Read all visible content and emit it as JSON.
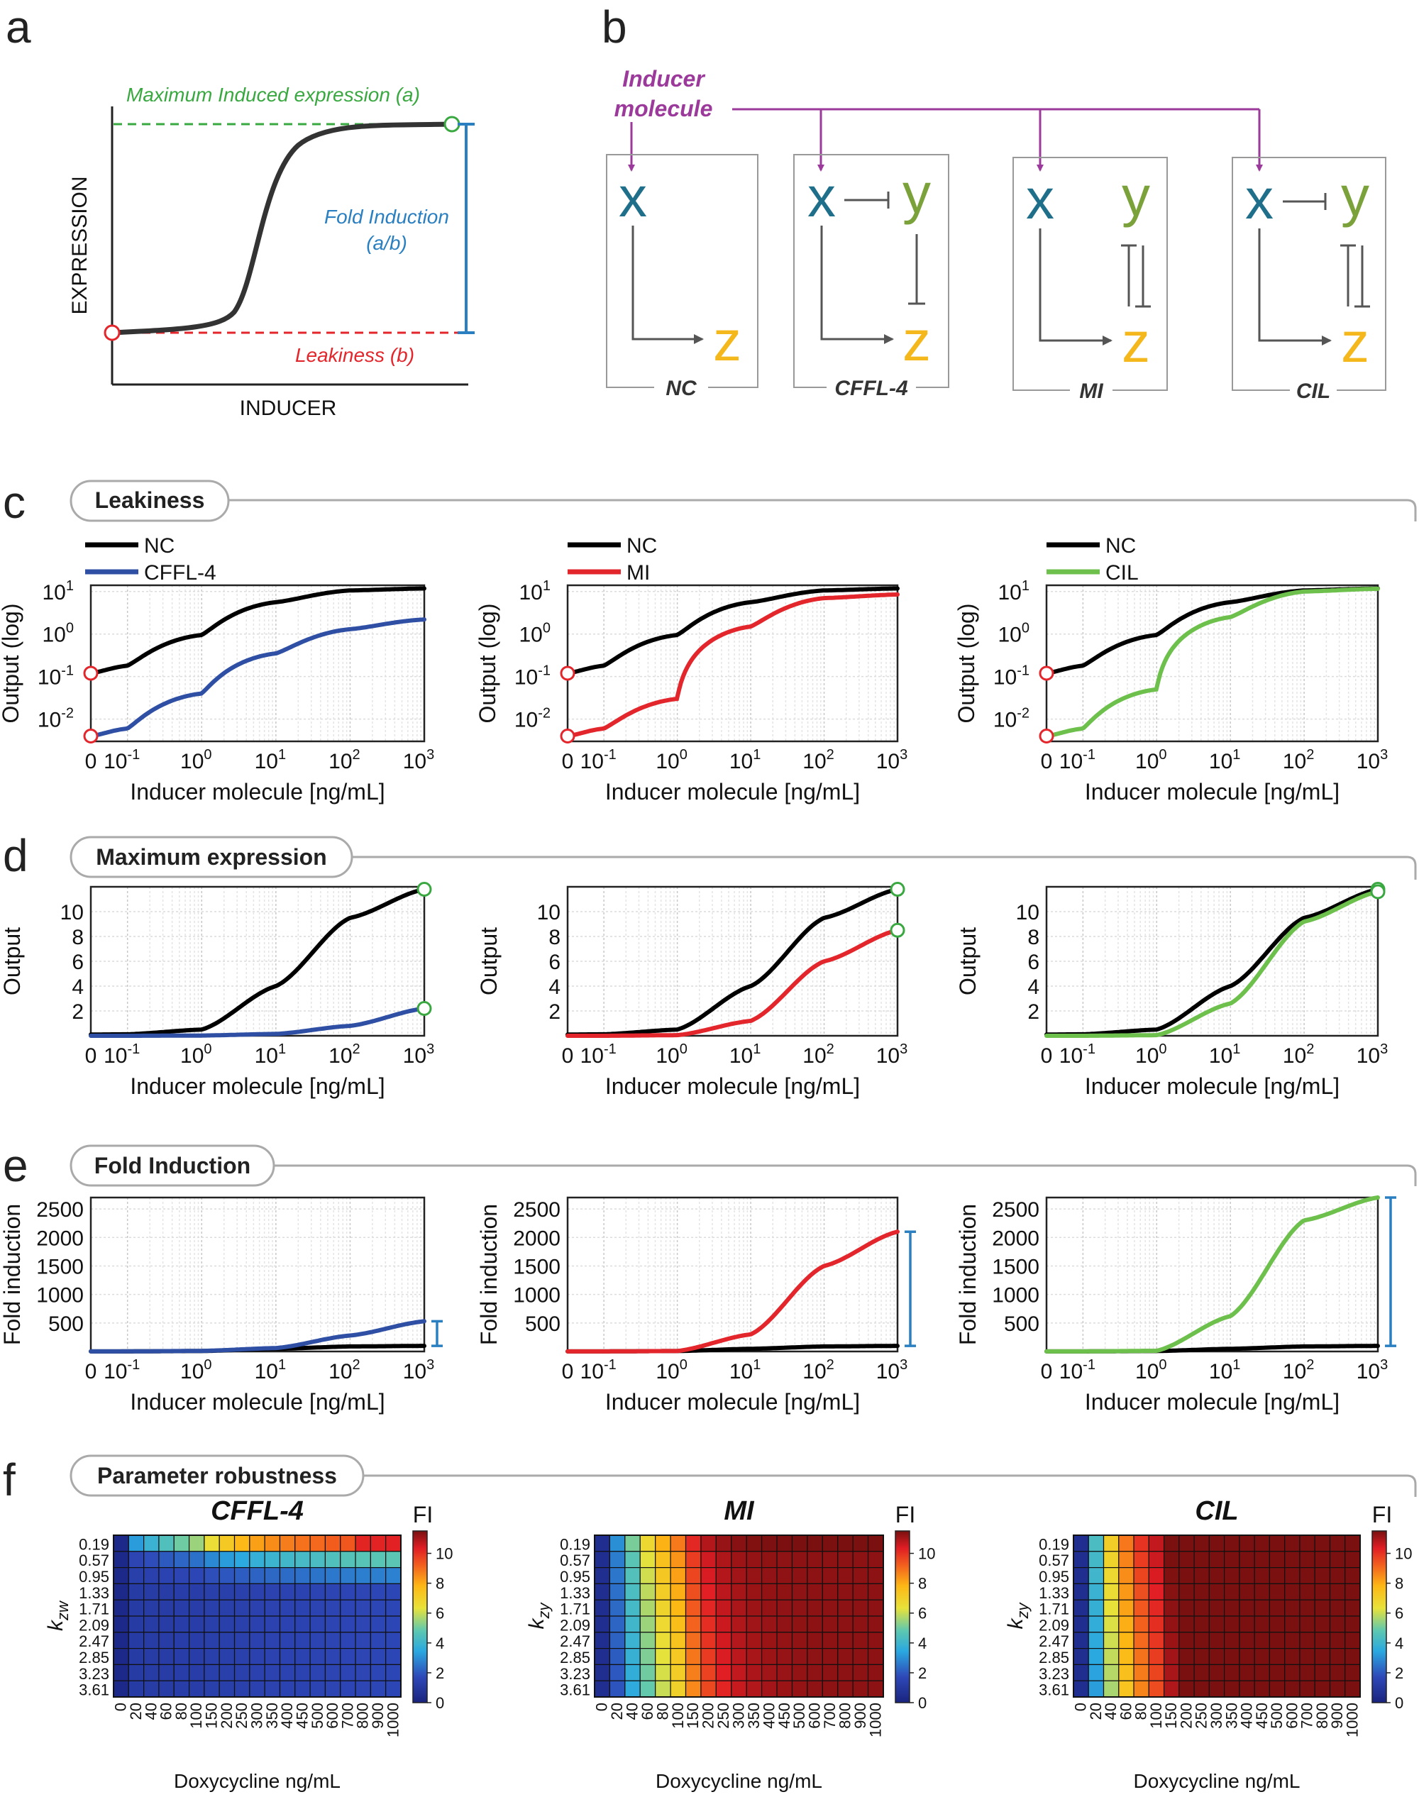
{
  "panel_letters": {
    "a": "a",
    "b": "b",
    "c": "c",
    "d": "d",
    "e": "e",
    "f": "f"
  },
  "section_titles": {
    "c": "Leakiness",
    "d": "Maximum expression",
    "e": "Fold Induction",
    "f": "Parameter robustness"
  },
  "colors": {
    "nc": "#000000",
    "cffl4": "#2e4fa3",
    "mi": "#e3262c",
    "cil": "#6dc04b",
    "leak": "#e3262c",
    "max": "#3aa841",
    "fold": "#2a7fc1",
    "inducer": "#9b3a9b",
    "x": "#1f6f8b",
    "y": "#7ba23a",
    "z": "#f4b81d"
  },
  "panel_a": {
    "max_label": "Maximum Induced expression (a)",
    "fold_label_1": "Fold Induction",
    "fold_label_2": "(a/b)",
    "leak_label": "Leakiness (b)",
    "ylabel": "EXPRESSION",
    "xlabel": "INDUCER"
  },
  "panel_b": {
    "inducer_1": "Inducer",
    "inducer_2": "molecule",
    "nodes": {
      "x": "x",
      "y": "y",
      "z": "z"
    },
    "circuits": [
      "NC",
      "CFFL-4",
      "MI",
      "CIL"
    ]
  },
  "xticks": [
    "0",
    "10",
    "10",
    "10",
    "10",
    "10"
  ],
  "xtick_exps": [
    "",
    "-1",
    "0",
    "1",
    "2",
    "3"
  ],
  "xlabel": "Inducer molecule [ng/mL]",
  "nc_label": "NC",
  "chart_data": [
    {
      "type": "line",
      "id": "c1",
      "section": "Leakiness",
      "ylabel": "Output (log)",
      "yscale": "log",
      "ylim": [
        0.003,
        14
      ],
      "yticks": [
        "10",
        "10",
        "10",
        "10"
      ],
      "ytick_exps": [
        "1",
        "0",
        "-1",
        "-2"
      ],
      "ytick_values": [
        10,
        1,
        0.1,
        0.01
      ],
      "x": [
        0,
        0.1,
        1,
        10,
        100,
        1000
      ],
      "series": [
        {
          "name": "NC",
          "values": [
            0.12,
            0.18,
            0.95,
            5.6,
            10.6,
            11.8
          ]
        },
        {
          "name": "CFFL-4",
          "values": [
            0.004,
            0.006,
            0.04,
            0.35,
            1.3,
            2.2
          ]
        }
      ]
    },
    {
      "type": "line",
      "id": "c2",
      "section": "Leakiness",
      "ylabel": "Output (log)",
      "yscale": "log",
      "ylim": [
        0.003,
        14
      ],
      "yticks": [
        "10",
        "10",
        "10",
        "10"
      ],
      "ytick_exps": [
        "1",
        "0",
        "-1",
        "-2"
      ],
      "ytick_values": [
        10,
        1,
        0.1,
        0.01
      ],
      "x": [
        0,
        0.1,
        1,
        10,
        100,
        1000
      ],
      "series": [
        {
          "name": "NC",
          "values": [
            0.12,
            0.18,
            0.95,
            5.6,
            10.6,
            11.8
          ]
        },
        {
          "name": "MI",
          "values": [
            0.004,
            0.006,
            0.03,
            1.5,
            7.0,
            8.5
          ]
        }
      ]
    },
    {
      "type": "line",
      "id": "c3",
      "section": "Leakiness",
      "ylabel": "Output (log)",
      "yscale": "log",
      "ylim": [
        0.003,
        14
      ],
      "yticks": [
        "10",
        "10",
        "10",
        "10"
      ],
      "ytick_exps": [
        "1",
        "0",
        "-1",
        "-2"
      ],
      "ytick_values": [
        10,
        1,
        0.1,
        0.01
      ],
      "x": [
        0,
        0.1,
        1,
        10,
        100,
        1000
      ],
      "series": [
        {
          "name": "NC",
          "values": [
            0.12,
            0.18,
            0.95,
            5.6,
            10.6,
            11.8
          ]
        },
        {
          "name": "CIL",
          "values": [
            0.004,
            0.006,
            0.05,
            2.5,
            10.0,
            11.6
          ]
        }
      ]
    },
    {
      "type": "line",
      "id": "d1",
      "section": "Maximum expression",
      "ylabel": "Output",
      "yscale": "linear",
      "ylim": [
        0,
        12
      ],
      "yticks": [
        "10",
        "8",
        "6",
        "4",
        "2"
      ],
      "ytick_values": [
        10,
        8,
        6,
        4,
        2
      ],
      "x": [
        0,
        0.1,
        1,
        10,
        100,
        1000
      ],
      "series": [
        {
          "name": "NC",
          "values": [
            0.1,
            0.12,
            0.5,
            4.0,
            9.5,
            11.8
          ]
        },
        {
          "name": "CFFL-4",
          "values": [
            0,
            0,
            0.02,
            0.15,
            0.8,
            2.2
          ]
        }
      ]
    },
    {
      "type": "line",
      "id": "d2",
      "section": "Maximum expression",
      "ylabel": "Output",
      "yscale": "linear",
      "ylim": [
        0,
        12
      ],
      "yticks": [
        "10",
        "8",
        "6",
        "4",
        "2"
      ],
      "ytick_values": [
        10,
        8,
        6,
        4,
        2
      ],
      "x": [
        0,
        0.1,
        1,
        10,
        100,
        1000
      ],
      "series": [
        {
          "name": "NC",
          "values": [
            0.1,
            0.12,
            0.5,
            4.0,
            9.5,
            11.8
          ]
        },
        {
          "name": "MI",
          "values": [
            0,
            0,
            0.05,
            1.2,
            6.0,
            8.5
          ]
        }
      ]
    },
    {
      "type": "line",
      "id": "d3",
      "section": "Maximum expression",
      "ylabel": "Output",
      "yscale": "linear",
      "ylim": [
        0,
        12
      ],
      "yticks": [
        "10",
        "8",
        "6",
        "4",
        "2"
      ],
      "ytick_values": [
        10,
        8,
        6,
        4,
        2
      ],
      "x": [
        0,
        0.1,
        1,
        10,
        100,
        1000
      ],
      "series": [
        {
          "name": "NC",
          "values": [
            0.1,
            0.12,
            0.5,
            4.0,
            9.5,
            11.8
          ]
        },
        {
          "name": "CIL",
          "values": [
            0,
            0,
            0.05,
            2.6,
            9.2,
            11.6
          ]
        }
      ]
    },
    {
      "type": "line",
      "id": "e1",
      "section": "Fold Induction",
      "ylabel": "Fold induction",
      "yscale": "linear",
      "ylim": [
        0,
        2700
      ],
      "yticks": [
        "2500",
        "2000",
        "1500",
        "1000",
        "500"
      ],
      "ytick_values": [
        2500,
        2000,
        1500,
        1000,
        500
      ],
      "x": [
        0,
        0.1,
        1,
        10,
        100,
        1000
      ],
      "series": [
        {
          "name": "NC",
          "values": [
            1,
            1.5,
            8,
            47,
            88,
            98
          ]
        },
        {
          "name": "CFFL-4",
          "values": [
            1,
            2,
            10,
            60,
            280,
            530
          ]
        }
      ]
    },
    {
      "type": "line",
      "id": "e2",
      "section": "Fold Induction",
      "ylabel": "Fold induction",
      "yscale": "linear",
      "ylim": [
        0,
        2700
      ],
      "yticks": [
        "2500",
        "2000",
        "1500",
        "1000",
        "500"
      ],
      "ytick_values": [
        2500,
        2000,
        1500,
        1000,
        500
      ],
      "x": [
        0,
        0.1,
        1,
        10,
        100,
        1000
      ],
      "series": [
        {
          "name": "NC",
          "values": [
            1,
            1.5,
            8,
            47,
            88,
            98
          ]
        },
        {
          "name": "MI",
          "values": [
            1,
            1.5,
            8,
            300,
            1500,
            2100
          ]
        }
      ]
    },
    {
      "type": "line",
      "id": "e3",
      "section": "Fold Induction",
      "ylabel": "Fold induction",
      "yscale": "linear",
      "ylim": [
        0,
        2700
      ],
      "yticks": [
        "2500",
        "2000",
        "1500",
        "1000",
        "500"
      ],
      "ytick_values": [
        2500,
        2000,
        1500,
        1000,
        500
      ],
      "x": [
        0,
        0.1,
        1,
        10,
        100,
        1000
      ],
      "series": [
        {
          "name": "NC",
          "values": [
            1,
            1.5,
            8,
            47,
            88,
            98
          ]
        },
        {
          "name": "CIL",
          "values": [
            1,
            1.5,
            12,
            620,
            2300,
            2700
          ]
        }
      ]
    },
    {
      "type": "heatmap",
      "id": "f1",
      "title": "CFFL-4",
      "ylabel": "k",
      "ysub": "zw",
      "xlabel": "Doxycycline ng/mL",
      "colorbar_label": "FI",
      "x": [
        "0",
        "20",
        "40",
        "60",
        "80",
        "100",
        "150",
        "200",
        "250",
        "300",
        "350",
        "400",
        "450",
        "500",
        "600",
        "700",
        "800",
        "900",
        "1000"
      ],
      "y": [
        "0.19",
        "0.57",
        "0.95",
        "1.33",
        "1.71",
        "2.09",
        "2.47",
        "2.85",
        "3.23",
        "3.61"
      ],
      "clim": [
        0,
        11.5
      ],
      "colorbar_ticks": [
        "10",
        "8",
        "6",
        "4",
        "2",
        "0"
      ],
      "colorbar_values": [
        10,
        8,
        6,
        4,
        2,
        0
      ]
    },
    {
      "type": "heatmap",
      "id": "f2",
      "title": "MI",
      "ylabel": "k",
      "ysub": "zy",
      "xlabel": "Doxycycline ng/mL",
      "colorbar_label": "FI",
      "x": [
        "0",
        "20",
        "40",
        "60",
        "80",
        "100",
        "150",
        "200",
        "250",
        "300",
        "350",
        "400",
        "450",
        "500",
        "600",
        "700",
        "800",
        "900",
        "1000"
      ],
      "y": [
        "0.19",
        "0.57",
        "0.95",
        "1.33",
        "1.71",
        "2.09",
        "2.47",
        "2.85",
        "3.23",
        "3.61"
      ],
      "clim": [
        0,
        11.5
      ],
      "colorbar_ticks": [
        "10",
        "8",
        "6",
        "4",
        "2",
        "0"
      ],
      "colorbar_values": [
        10,
        8,
        6,
        4,
        2,
        0
      ]
    },
    {
      "type": "heatmap",
      "id": "f3",
      "title": "CIL",
      "ylabel": "k",
      "ysub": "zy",
      "xlabel": "Doxycycline ng/mL",
      "colorbar_label": "FI",
      "x": [
        "0",
        "20",
        "40",
        "60",
        "80",
        "100",
        "150",
        "200",
        "250",
        "300",
        "350",
        "400",
        "450",
        "500",
        "600",
        "700",
        "800",
        "900",
        "1000"
      ],
      "y": [
        "0.19",
        "0.57",
        "0.95",
        "1.33",
        "1.71",
        "2.09",
        "2.47",
        "2.85",
        "3.23",
        "3.61"
      ],
      "clim": [
        0,
        11.5
      ],
      "colorbar_ticks": [
        "10",
        "8",
        "6",
        "4",
        "2",
        "0"
      ],
      "colorbar_values": [
        10,
        8,
        6,
        4,
        2,
        0
      ]
    }
  ]
}
